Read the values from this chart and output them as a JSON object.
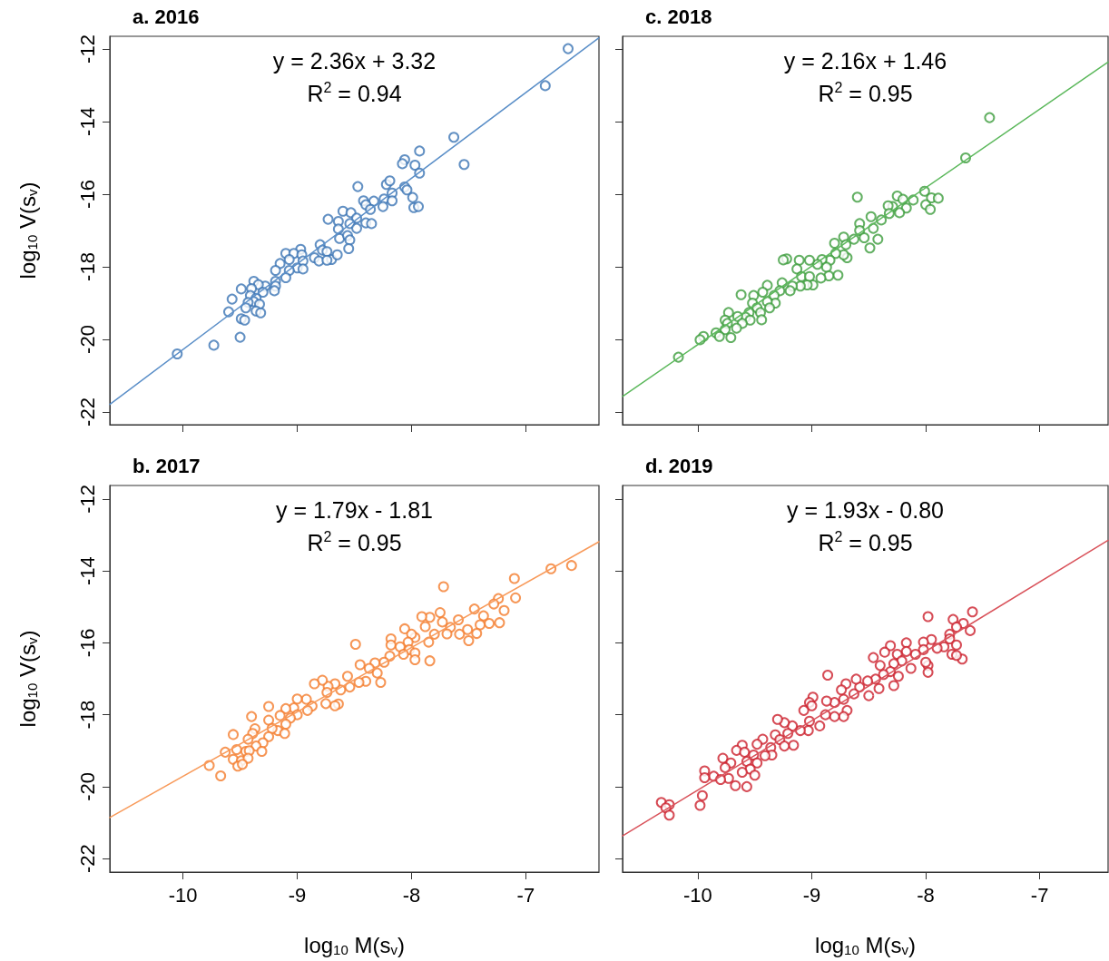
{
  "chart_data": [
    {
      "type": "scatter",
      "title": "a. 2016",
      "ylabel": "log$_{10}$ V(s$_{v}$)",
      "annotations": [
        "y = 2.36x + 3.32",
        "R$^{2}$ = 0.94"
      ],
      "xlim": [
        -10.64,
        -6.36
      ],
      "ylim": [
        -22.35,
        -11.65
      ],
      "xticks": [
        -10,
        -9,
        -8,
        -7
      ],
      "yticks": [
        -22,
        -20,
        -18,
        -16,
        -14,
        -12
      ],
      "tick_labels": "y",
      "series": [
        {
          "marker": "circle",
          "color": "#3b74b4",
          "x": [
            -6.63,
            -6.83,
            -7.63,
            -7.54,
            -7.93,
            -8.06,
            -8.08,
            -7.97,
            -7.93,
            -8.06,
            -8.04,
            -7.99,
            -7.98,
            -7.94,
            -8.47,
            -8.22,
            -8.19,
            -8.17,
            -8.24,
            -8.17,
            -8.25,
            -8.33,
            -8.42,
            -8.4,
            -8.36,
            -8.4,
            -8.35,
            -8.6,
            -8.53,
            -8.73,
            -8.64,
            -8.48,
            -8.54,
            -8.48,
            -8.64,
            -8.63,
            -8.56,
            -8.54,
            -8.55,
            -8.8,
            -8.78,
            -8.74,
            -8.85,
            -8.81,
            -8.7,
            -8.65,
            -8.74,
            -8.97,
            -9.1,
            -9.03,
            -8.96,
            -9.07,
            -8.95,
            -9.15,
            -9.19,
            -9.0,
            -8.95,
            -9.07,
            -9.1,
            -9.19,
            -9.19,
            -9.2,
            -9.28,
            -9.38,
            -9.34,
            -9.49,
            -9.4,
            -9.3,
            -9.41,
            -9.36,
            -9.38,
            -9.33,
            -9.43,
            -9.57,
            -9.45,
            -9.36,
            -9.32,
            -9.6,
            -9.49,
            -9.46,
            -9.5,
            -9.73,
            -10.05
          ],
          "values": [
            -11.99,
            -13.01,
            -14.43,
            -15.18,
            -14.81,
            -15.05,
            -15.16,
            -15.2,
            -15.42,
            -15.8,
            -15.88,
            -16.09,
            -16.37,
            -16.34,
            -15.79,
            -15.73,
            -15.63,
            -15.97,
            -16.13,
            -16.18,
            -16.34,
            -16.19,
            -16.18,
            -16.29,
            -16.42,
            -16.79,
            -16.81,
            -16.47,
            -16.51,
            -16.69,
            -16.75,
            -16.66,
            -16.81,
            -16.94,
            -16.96,
            -17.22,
            -17.14,
            -17.26,
            -17.5,
            -17.39,
            -17.54,
            -17.58,
            -17.75,
            -17.84,
            -17.8,
            -17.67,
            -17.82,
            -17.52,
            -17.63,
            -17.63,
            -17.67,
            -17.8,
            -17.84,
            -17.91,
            -18.1,
            -18.03,
            -18.06,
            -18.1,
            -18.3,
            -18.4,
            -18.53,
            -18.66,
            -18.53,
            -18.4,
            -18.49,
            -18.61,
            -18.6,
            -18.7,
            -18.79,
            -18.87,
            -18.96,
            -19.03,
            -18.98,
            -18.89,
            -19.13,
            -19.22,
            -19.27,
            -19.24,
            -19.43,
            -19.47,
            -19.94,
            -20.16,
            -20.4
          ]
        },
        {
          "type": "line",
          "color": "#5b8fc8",
          "x": [
            -10.64,
            -6.36
          ],
          "values": [
            -21.79,
            -11.69
          ]
        }
      ]
    },
    {
      "type": "scatter",
      "title": "c. 2018",
      "annotations": [
        "y = 2.16x + 1.46",
        "R$^{2}$ = 0.95"
      ],
      "xlim": [
        -10.66,
        -6.4
      ],
      "ylim": [
        -22.35,
        -11.65
      ],
      "xticks": [
        -10,
        -9,
        -8,
        -7
      ],
      "yticks": [
        -22,
        -20,
        -18,
        -16,
        -14,
        -12
      ],
      "tick_labels": false,
      "series": [
        {
          "marker": "circle",
          "color": "#3c9c3c",
          "x": [
            -7.44,
            -7.65,
            -8.6,
            -8.01,
            -7.95,
            -7.89,
            -8.0,
            -7.96,
            -8.11,
            -8.25,
            -8.2,
            -8.17,
            -8.23,
            -8.29,
            -8.33,
            -8.32,
            -8.39,
            -8.48,
            -8.46,
            -8.58,
            -8.58,
            -8.42,
            -8.49,
            -8.54,
            -8.63,
            -8.72,
            -8.8,
            -8.7,
            -8.69,
            -8.72,
            -8.79,
            -8.84,
            -8.91,
            -8.95,
            -8.87,
            -8.77,
            -8.85,
            -9.02,
            -9.11,
            -9.22,
            -9.25,
            -9.13,
            -9.09,
            -9.02,
            -8.99,
            -8.92,
            -9.04,
            -9.1,
            -9.17,
            -9.26,
            -9.19,
            -9.28,
            -9.39,
            -9.43,
            -9.33,
            -9.32,
            -9.39,
            -9.37,
            -9.51,
            -9.62,
            -9.52,
            -9.48,
            -9.45,
            -9.44,
            -9.55,
            -9.58,
            -9.54,
            -9.73,
            -9.65,
            -9.61,
            -9.66,
            -9.76,
            -9.74,
            -9.76,
            -9.71,
            -9.84,
            -9.81,
            -9.95,
            -9.98,
            -10.17
          ],
          "values": [
            -13.89,
            -15.0,
            -16.08,
            -15.92,
            -16.1,
            -16.11,
            -16.29,
            -16.42,
            -16.16,
            -16.05,
            -16.14,
            -16.38,
            -16.51,
            -16.34,
            -16.32,
            -16.53,
            -16.71,
            -16.62,
            -16.94,
            -16.81,
            -17.0,
            -17.24,
            -17.48,
            -17.2,
            -17.24,
            -17.18,
            -17.35,
            -17.39,
            -17.75,
            -17.67,
            -17.63,
            -17.82,
            -17.8,
            -17.93,
            -18.01,
            -18.23,
            -18.25,
            -17.82,
            -17.82,
            -17.78,
            -17.81,
            -18.06,
            -18.27,
            -18.27,
            -18.5,
            -18.31,
            -18.5,
            -18.53,
            -18.53,
            -18.44,
            -18.66,
            -18.66,
            -18.51,
            -18.7,
            -18.79,
            -19.0,
            -18.96,
            -19.13,
            -18.79,
            -18.77,
            -19.0,
            -19.13,
            -19.26,
            -19.46,
            -19.26,
            -19.39,
            -19.47,
            -19.26,
            -19.37,
            -19.56,
            -19.69,
            -19.47,
            -19.56,
            -19.73,
            -19.95,
            -19.82,
            -19.92,
            -19.92,
            -20.01,
            -20.49
          ]
        },
        {
          "type": "line",
          "color": "#5cb85c",
          "x": [
            -10.66,
            -6.4
          ],
          "values": [
            -21.57,
            -12.36
          ]
        }
      ]
    },
    {
      "type": "scatter",
      "title": "b. 2017",
      "xlabel": "log$_{10}$ M(s$_{v}$)",
      "ylabel": "log$_{10}$ V(s$_{v}$)",
      "annotations": [
        "y = 1.79x - 1.81",
        "R$^{2}$ = 0.95"
      ],
      "xlim": [
        -10.64,
        -6.36
      ],
      "ylim": [
        -22.375,
        -11.625
      ],
      "xticks": [
        -10,
        -9,
        -8,
        -7
      ],
      "yticks": [
        -22,
        -20,
        -18,
        -16,
        -14,
        -12
      ],
      "series": [
        {
          "marker": "circle",
          "color": "#f47c2c",
          "x": [
            -6.6,
            -6.78,
            -7.1,
            -7.09,
            -7.72,
            -7.19,
            -7.24,
            -7.28,
            -7.23,
            -7.32,
            -7.37,
            -7.45,
            -7.4,
            -7.43,
            -7.51,
            -7.5,
            -7.59,
            -7.58,
            -7.66,
            -7.69,
            -7.75,
            -7.73,
            -7.84,
            -7.91,
            -7.88,
            -7.8,
            -7.85,
            -7.84,
            -7.97,
            -8.06,
            -8.0,
            -8.03,
            -8.18,
            -8.18,
            -8.1,
            -8.02,
            -8.07,
            -7.97,
            -7.97,
            -8.19,
            -8.24,
            -8.32,
            -8.49,
            -8.45,
            -8.37,
            -8.3,
            -8.27,
            -8.4,
            -8.46,
            -8.56,
            -8.54,
            -8.62,
            -8.67,
            -8.73,
            -8.78,
            -8.85,
            -8.74,
            -8.64,
            -8.67,
            -8.75,
            -8.87,
            -8.91,
            -8.92,
            -9.0,
            -9.03,
            -9.1,
            -9.0,
            -9.06,
            -9.15,
            -9.25,
            -9.25,
            -9.1,
            -9.17,
            -9.22,
            -9.11,
            -9.4,
            -9.37,
            -9.39,
            -9.25,
            -9.3,
            -9.43,
            -9.36,
            -9.56,
            -9.53,
            -9.45,
            -9.42,
            -9.31,
            -9.63,
            -9.56,
            -9.49,
            -9.43,
            -9.52,
            -9.48,
            -9.77,
            -9.67
          ],
          "values": [
            -13.85,
            -13.94,
            -14.21,
            -14.75,
            -14.44,
            -15.1,
            -14.77,
            -14.92,
            -15.44,
            -15.46,
            -15.25,
            -15.06,
            -15.5,
            -15.74,
            -15.63,
            -15.94,
            -15.36,
            -15.76,
            -15.57,
            -15.75,
            -15.16,
            -15.42,
            -15.29,
            -15.27,
            -15.55,
            -15.76,
            -15.98,
            -16.5,
            -15.85,
            -15.61,
            -15.76,
            -15.98,
            -15.89,
            -16.06,
            -16.11,
            -16.19,
            -16.32,
            -16.28,
            -16.47,
            -16.37,
            -16.54,
            -16.56,
            -16.04,
            -16.61,
            -16.71,
            -16.84,
            -17.1,
            -17.07,
            -17.1,
            -16.93,
            -17.23,
            -17.31,
            -17.14,
            -17.21,
            -17.04,
            -17.14,
            -17.38,
            -17.7,
            -17.75,
            -17.69,
            -17.76,
            -17.88,
            -17.57,
            -17.56,
            -17.81,
            -17.83,
            -18.0,
            -18.09,
            -18.02,
            -17.77,
            -18.15,
            -18.26,
            -18.44,
            -18.38,
            -18.52,
            -18.05,
            -18.39,
            -18.52,
            -18.61,
            -18.78,
            -18.68,
            -18.87,
            -18.55,
            -18.97,
            -19.02,
            -19.0,
            -19.02,
            -19.04,
            -19.24,
            -19.28,
            -19.21,
            -19.43,
            -19.38,
            -19.41,
            -19.7
          ]
        },
        {
          "type": "line",
          "color": "#f89a5a",
          "x": [
            -10.64,
            -6.36
          ],
          "values": [
            -20.86,
            -13.19
          ]
        }
      ]
    },
    {
      "type": "scatter",
      "title": "d. 2019",
      "xlabel": "log$_{10}$ M(s$_{v}$)",
      "annotations": [
        "y = 1.93x - 0.80",
        "R$^{2}$ = 0.95"
      ],
      "xlim": [
        -10.66,
        -6.4
      ],
      "ylim": [
        -22.375,
        -11.625
      ],
      "xticks": [
        -10,
        -9,
        -8,
        -7
      ],
      "yticks": [
        -22,
        -20,
        -18,
        -16,
        -14,
        -12
      ],
      "tick_labels": "x",
      "series": [
        {
          "marker": "circle",
          "color": "#cc1f2c",
          "x": [
            -7.59,
            -7.98,
            -7.76,
            -7.67,
            -7.73,
            -7.61,
            -7.79,
            -7.79,
            -7.73,
            -7.77,
            -7.68,
            -7.73,
            -7.84,
            -7.9,
            -7.95,
            -8.02,
            -8.02,
            -7.98,
            -7.98,
            -8.0,
            -8.09,
            -8.17,
            -8.17,
            -8.25,
            -8.31,
            -8.36,
            -8.21,
            -8.28,
            -8.13,
            -8.31,
            -8.24,
            -8.28,
            -8.37,
            -8.4,
            -8.46,
            -8.44,
            -8.41,
            -8.51,
            -8.58,
            -8.61,
            -8.7,
            -8.63,
            -8.5,
            -8.74,
            -8.72,
            -8.86,
            -8.8,
            -8.87,
            -8.99,
            -9.02,
            -9.0,
            -8.69,
            -8.72,
            -8.8,
            -8.88,
            -8.93,
            -9.02,
            -9.07,
            -9.03,
            -9.1,
            -9.17,
            -9.24,
            -9.3,
            -9.21,
            -9.32,
            -9.28,
            -9.16,
            -9.24,
            -9.43,
            -9.36,
            -9.35,
            -9.41,
            -9.48,
            -9.61,
            -9.66,
            -9.59,
            -9.51,
            -9.57,
            -9.48,
            -9.54,
            -9.5,
            -9.78,
            -9.71,
            -9.76,
            -9.61,
            -9.73,
            -9.67,
            -9.57,
            -9.86,
            -9.8,
            -9.94,
            -9.94,
            -9.96,
            -9.98,
            -10.32,
            -10.25,
            -10.28,
            -10.25
          ],
          "values": [
            -15.14,
            -15.27,
            -15.35,
            -15.46,
            -15.56,
            -15.66,
            -15.76,
            -15.89,
            -16.06,
            -16.32,
            -16.45,
            -16.35,
            -16.11,
            -16.15,
            -15.91,
            -15.98,
            -16.19,
            -16.63,
            -16.82,
            -16.54,
            -16.32,
            -16.0,
            -16.24,
            -16.32,
            -16.08,
            -16.26,
            -16.5,
            -16.58,
            -16.71,
            -16.8,
            -16.93,
            -17.19,
            -16.88,
            -16.63,
            -16.41,
            -17.01,
            -17.27,
            -17.06,
            -17.23,
            -17.01,
            -17.14,
            -17.42,
            -17.47,
            -17.31,
            -17.57,
            -16.9,
            -17.66,
            -17.62,
            -17.51,
            -17.66,
            -17.75,
            -17.88,
            -18.05,
            -18.05,
            -18.0,
            -18.31,
            -18.18,
            -17.88,
            -18.44,
            -18.44,
            -18.31,
            -18.22,
            -18.13,
            -18.52,
            -18.56,
            -18.69,
            -18.85,
            -18.87,
            -18.68,
            -18.91,
            -19.12,
            -19.14,
            -18.82,
            -18.85,
            -18.99,
            -19.04,
            -19.12,
            -19.3,
            -19.34,
            -19.51,
            -19.68,
            -19.21,
            -19.34,
            -19.47,
            -19.6,
            -19.77,
            -19.97,
            -20.0,
            -19.71,
            -19.8,
            -19.56,
            -19.75,
            -20.25,
            -20.52,
            -20.44,
            -20.5,
            -20.59,
            -20.79
          ]
        },
        {
          "type": "line",
          "color": "#d9535b",
          "x": [
            -10.66,
            -6.4
          ],
          "values": [
            -21.37,
            -13.15
          ]
        }
      ]
    }
  ]
}
